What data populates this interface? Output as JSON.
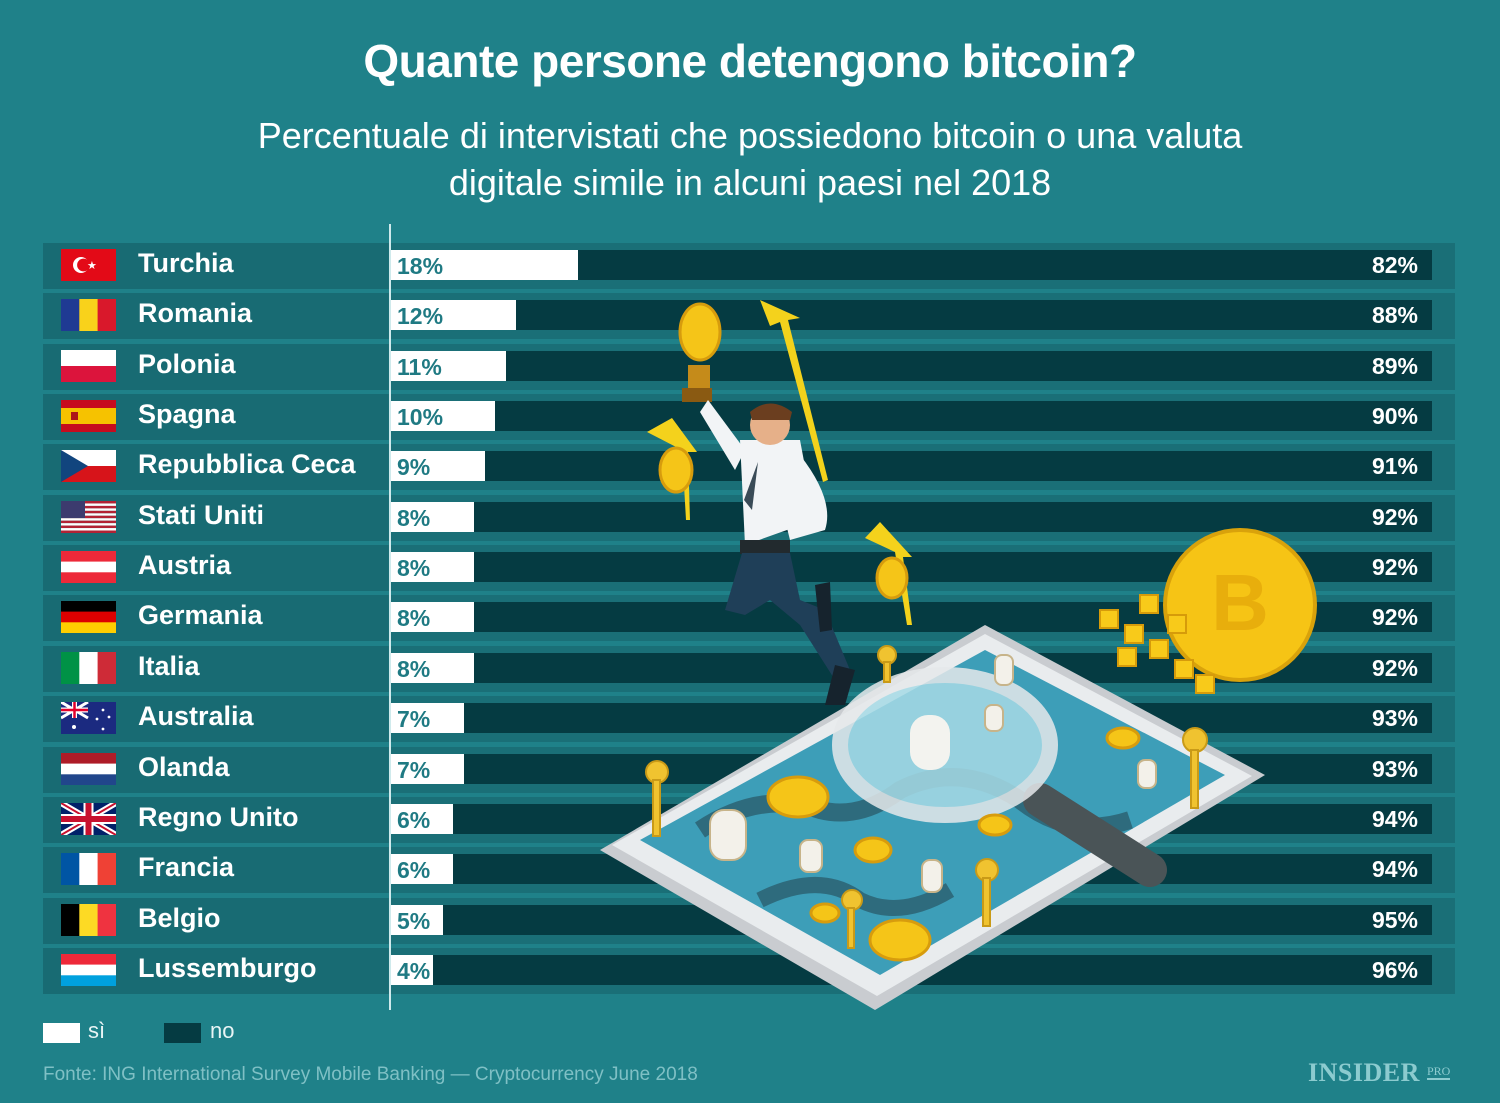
{
  "header": {
    "title": "Quante persone detengono bitcoin?",
    "subtitle_line1": "Percentuale di intervistati che possiedono bitcoin o una valuta",
    "subtitle_line2": "digitale simile in alcuni paesi nel 2018"
  },
  "colors": {
    "background": "#1f8189",
    "row_band": "#1a6f77",
    "yes_bar": "#ffffff",
    "no_bar": "#053b42",
    "yes_text": "#1f7a83"
  },
  "chart_data": {
    "type": "bar",
    "orientation": "horizontal",
    "stacked": true,
    "title": "Quante persone detengono bitcoin?",
    "subtitle": "Percentuale di intervistati che possiedono bitcoin o una valuta digitale simile in alcuni paesi nel 2018",
    "xlabel": "",
    "ylabel": "",
    "xlim": [
      0,
      100
    ],
    "unit": "%",
    "grid": false,
    "legend_position": "bottom-left",
    "categories": [
      "Turchia",
      "Romania",
      "Polonia",
      "Spagna",
      "Repubblica Ceca",
      "Stati Uniti",
      "Austria",
      "Germania",
      "Italia",
      "Australia",
      "Olanda",
      "Regno Unito",
      "Francia",
      "Belgio",
      "Lussemburgo"
    ],
    "series": [
      {
        "name": "sì",
        "values": [
          18,
          12,
          11,
          10,
          9,
          8,
          8,
          8,
          8,
          7,
          7,
          6,
          6,
          5,
          4
        ]
      },
      {
        "name": "no",
        "values": [
          82,
          88,
          89,
          90,
          91,
          92,
          92,
          92,
          92,
          93,
          93,
          94,
          94,
          95,
          96
        ]
      }
    ],
    "labels_yes": [
      "18%",
      "12%",
      "11%",
      "10%",
      "9%",
      "8%",
      "8%",
      "8%",
      "8%",
      "7%",
      "7%",
      "6%",
      "6%",
      "5%",
      "4%"
    ],
    "labels_no": [
      "82%",
      "88%",
      "89%",
      "90%",
      "91%",
      "92%",
      "92%",
      "92%",
      "92%",
      "93%",
      "93%",
      "94%",
      "94%",
      "95%",
      "96%"
    ]
  },
  "flags": [
    "turkey-flag",
    "romania-flag",
    "poland-flag",
    "spain-flag",
    "czech-flag",
    "usa-flag",
    "austria-flag",
    "germany-flag",
    "italy-flag",
    "australia-flag",
    "netherlands-flag",
    "uk-flag",
    "france-flag",
    "belgium-flag",
    "luxembourg-flag"
  ],
  "legend": {
    "yes_label": "sì",
    "no_label": "no"
  },
  "footer": {
    "source": "Fonte: ING International Survey Mobile Banking — Cryptocurrency June 2018",
    "brand": "INSIDER",
    "brand_suffix": "PRO"
  }
}
